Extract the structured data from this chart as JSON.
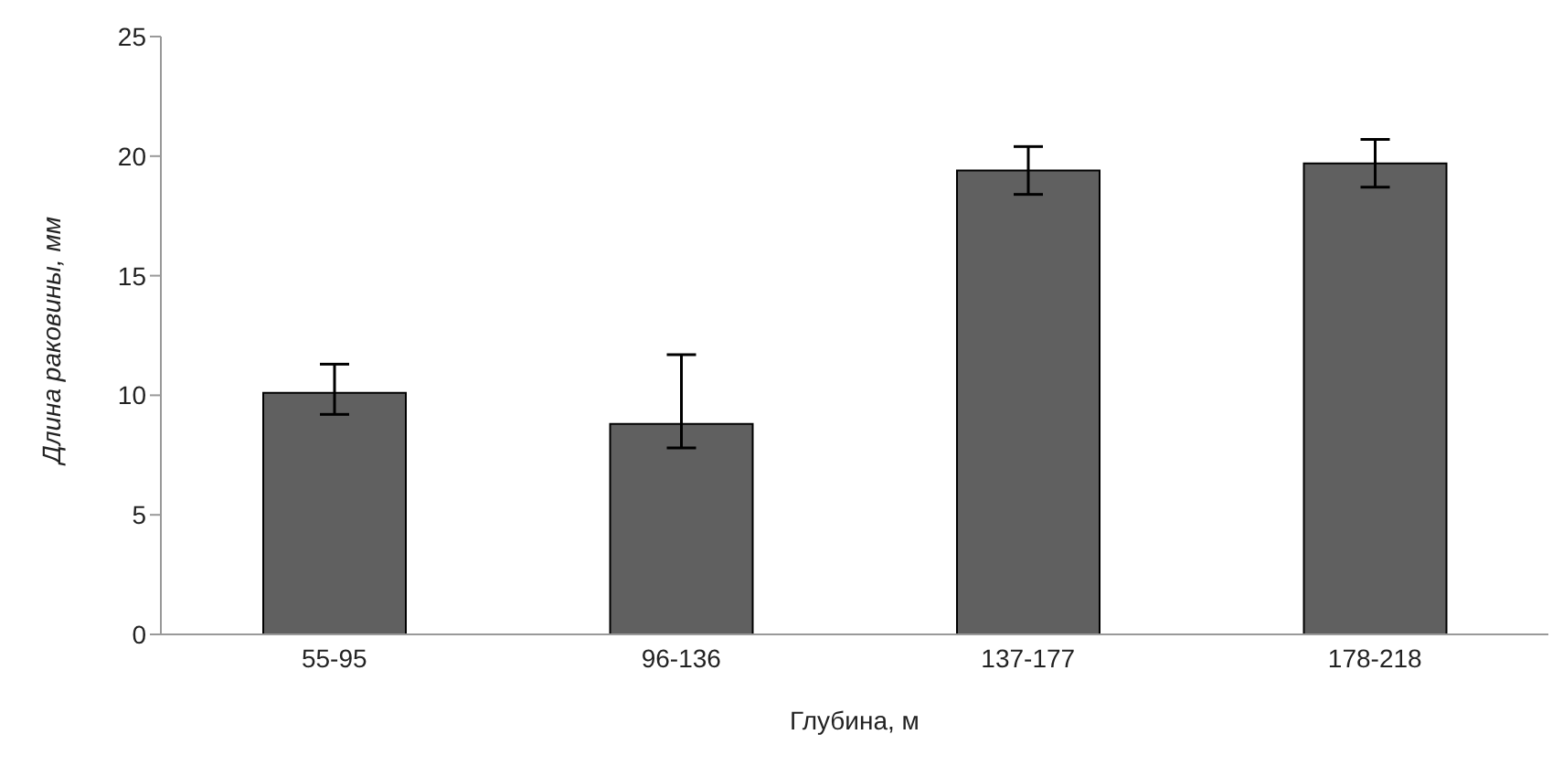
{
  "chart_data": {
    "type": "bar",
    "xlabel": "Глубина, м",
    "ylabel": "Длина раковины, мм",
    "categories": [
      "55-95",
      "96-136",
      "137-177",
      "178-218"
    ],
    "values": [
      10.1,
      8.8,
      19.4,
      19.7
    ],
    "errors": [
      [
        9.2,
        11.3
      ],
      [
        7.8,
        11.7
      ],
      [
        18.4,
        20.4
      ],
      [
        18.7,
        20.7
      ]
    ],
    "color": "#606060",
    "ylim": [
      0,
      25
    ],
    "yticks": [
      0,
      5,
      10,
      15,
      20,
      25
    ],
    "grid": false,
    "legend": false
  }
}
